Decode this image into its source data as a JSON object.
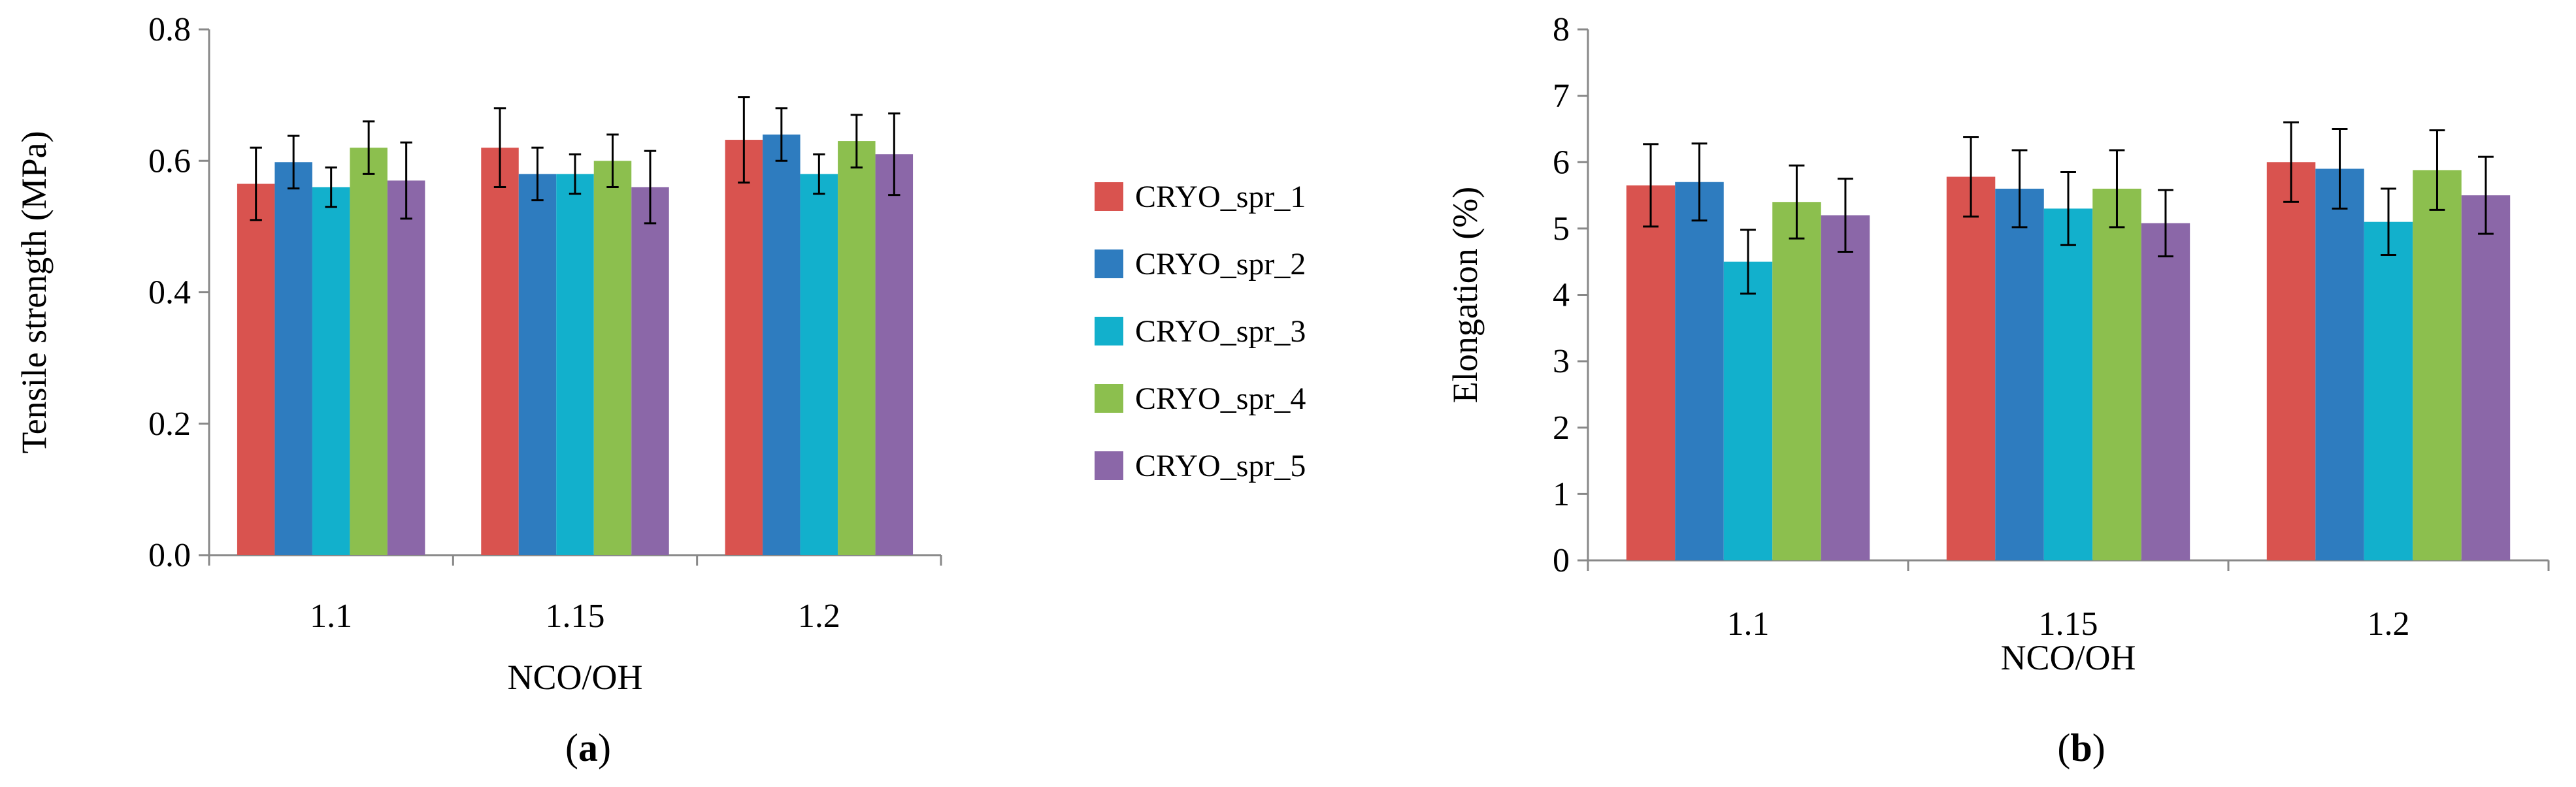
{
  "colors": {
    "CRYO_spr_1": "#d9534f",
    "CRYO_spr_2": "#2e7cbf",
    "CRYO_spr_3": "#12b0cc",
    "CRYO_spr_4": "#8cbf4e",
    "CRYO_spr_5": "#8b67a8"
  },
  "legend": {
    "placement": "between-panels",
    "entries": [
      "CRYO_spr_1",
      "CRYO_spr_2",
      "CRYO_spr_3",
      "CRYO_spr_4",
      "CRYO_spr_5"
    ]
  },
  "chart_data": [
    {
      "type": "bar",
      "panel_label": "(a)",
      "panel_letter": "a",
      "xlabel": "NCO/OH",
      "ylabel": "Tensile strength (MPa)",
      "ylim": [
        0,
        0.8
      ],
      "yticks": [
        0.0,
        0.2,
        0.4,
        0.6,
        0.8
      ],
      "ytick_labels": [
        "0.0",
        "0.2",
        "0.4",
        "0.6",
        "0.8"
      ],
      "grid": false,
      "categories": [
        "1.1",
        "1.15",
        "1.2"
      ],
      "series": [
        {
          "name": "CRYO_spr_1",
          "values": [
            0.565,
            0.62,
            0.632
          ],
          "errors": [
            0.055,
            0.06,
            0.065
          ]
        },
        {
          "name": "CRYO_spr_2",
          "values": [
            0.598,
            0.58,
            0.64
          ],
          "errors": [
            0.04,
            0.04,
            0.04
          ]
        },
        {
          "name": "CRYO_spr_3",
          "values": [
            0.56,
            0.58,
            0.58
          ],
          "errors": [
            0.03,
            0.03,
            0.03
          ]
        },
        {
          "name": "CRYO_spr_4",
          "values": [
            0.62,
            0.6,
            0.63
          ],
          "errors": [
            0.04,
            0.04,
            0.04
          ]
        },
        {
          "name": "CRYO_spr_5",
          "values": [
            0.57,
            0.56,
            0.61
          ],
          "errors": [
            0.058,
            0.055,
            0.062
          ]
        }
      ]
    },
    {
      "type": "bar",
      "panel_label": "(b)",
      "panel_letter": "b",
      "xlabel": "NCO/OH",
      "ylabel": "Elongation (%)",
      "ylim": [
        0,
        8
      ],
      "yticks": [
        0,
        1,
        2,
        3,
        4,
        5,
        6,
        7,
        8
      ],
      "ytick_labels": [
        "0",
        "1",
        "2",
        "3",
        "4",
        "5",
        "6",
        "7",
        "8"
      ],
      "grid": false,
      "categories": [
        "1.1",
        "1.15",
        "1.2"
      ],
      "series": [
        {
          "name": "CRYO_spr_1",
          "values": [
            5.65,
            5.78,
            6.0
          ],
          "errors": [
            0.62,
            0.6,
            0.6
          ]
        },
        {
          "name": "CRYO_spr_2",
          "values": [
            5.7,
            5.6,
            5.9
          ],
          "errors": [
            0.58,
            0.58,
            0.6
          ]
        },
        {
          "name": "CRYO_spr_3",
          "values": [
            4.5,
            5.3,
            5.1
          ],
          "errors": [
            0.48,
            0.55,
            0.5
          ]
        },
        {
          "name": "CRYO_spr_4",
          "values": [
            5.4,
            5.6,
            5.88
          ],
          "errors": [
            0.55,
            0.58,
            0.6
          ]
        },
        {
          "name": "CRYO_spr_5",
          "values": [
            5.2,
            5.08,
            5.5
          ],
          "errors": [
            0.55,
            0.5,
            0.58
          ]
        }
      ]
    }
  ]
}
